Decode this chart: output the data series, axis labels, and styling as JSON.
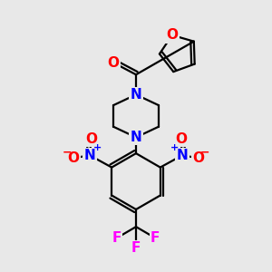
{
  "background_color": "#e8e8e8",
  "bond_color": "#000000",
  "bond_width": 1.6,
  "atom_colors": {
    "O": "#ff0000",
    "N": "#0000ff",
    "F": "#ff00ff"
  },
  "font_size_atoms": 11,
  "font_size_charge": 9
}
